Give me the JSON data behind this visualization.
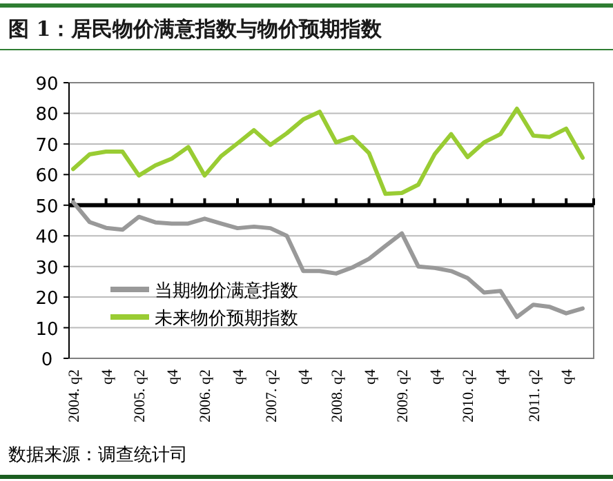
{
  "chart_data": {
    "type": "line",
    "title": "图 1：居民物价满意指数与物价预期指数",
    "categories": [
      "2004. q2",
      null,
      "q4",
      null,
      "2005. q2",
      null,
      "q4",
      null,
      "2006. q2",
      null,
      "q4",
      null,
      "2007. q2",
      null,
      "q4",
      null,
      "2008. q2",
      null,
      "q4",
      null,
      "2009. q2",
      null,
      "q4",
      null,
      "2010. q2",
      null,
      "q4",
      null,
      "2011. q2",
      null,
      "q4",
      null
    ],
    "series": [
      {
        "name": "当期物价满意指数",
        "color": "#999999",
        "values": [
          51,
          44.5,
          42.6,
          42,
          46.2,
          44.4,
          44,
          44,
          45.6,
          44,
          42.5,
          43,
          42.5,
          40,
          28.5,
          28.5,
          27.7,
          29.7,
          32.5,
          36.7,
          40.8,
          30,
          29.5,
          28.5,
          26.2,
          21.5,
          22,
          13.5,
          17.5,
          16.8,
          14.7,
          16.3
        ]
      },
      {
        "name": "未来物价预期指数",
        "color": "#99cc33",
        "values": [
          61.8,
          66.6,
          67.5,
          67.5,
          59.7,
          63,
          65.2,
          69,
          59.7,
          66,
          70.2,
          74.5,
          69.7,
          73.5,
          78,
          80.5,
          70.5,
          72.3,
          67,
          53.7,
          54,
          56.7,
          66.7,
          73.2,
          65.7,
          70.5,
          73.2,
          81.5,
          72.7,
          72.3,
          75,
          65.5
        ]
      }
    ],
    "ylim": [
      0,
      90
    ],
    "yticks": [
      0,
      10,
      20,
      30,
      40,
      50,
      60,
      70,
      80,
      90
    ],
    "grid": "y",
    "legend": "bottom left",
    "marker": "none",
    "line_style": "solid",
    "ref_lines": [
      {
        "axis": "y",
        "value": 50,
        "color": "#000000"
      }
    ],
    "annotations": [
      "数据来源：调查统计司"
    ]
  }
}
